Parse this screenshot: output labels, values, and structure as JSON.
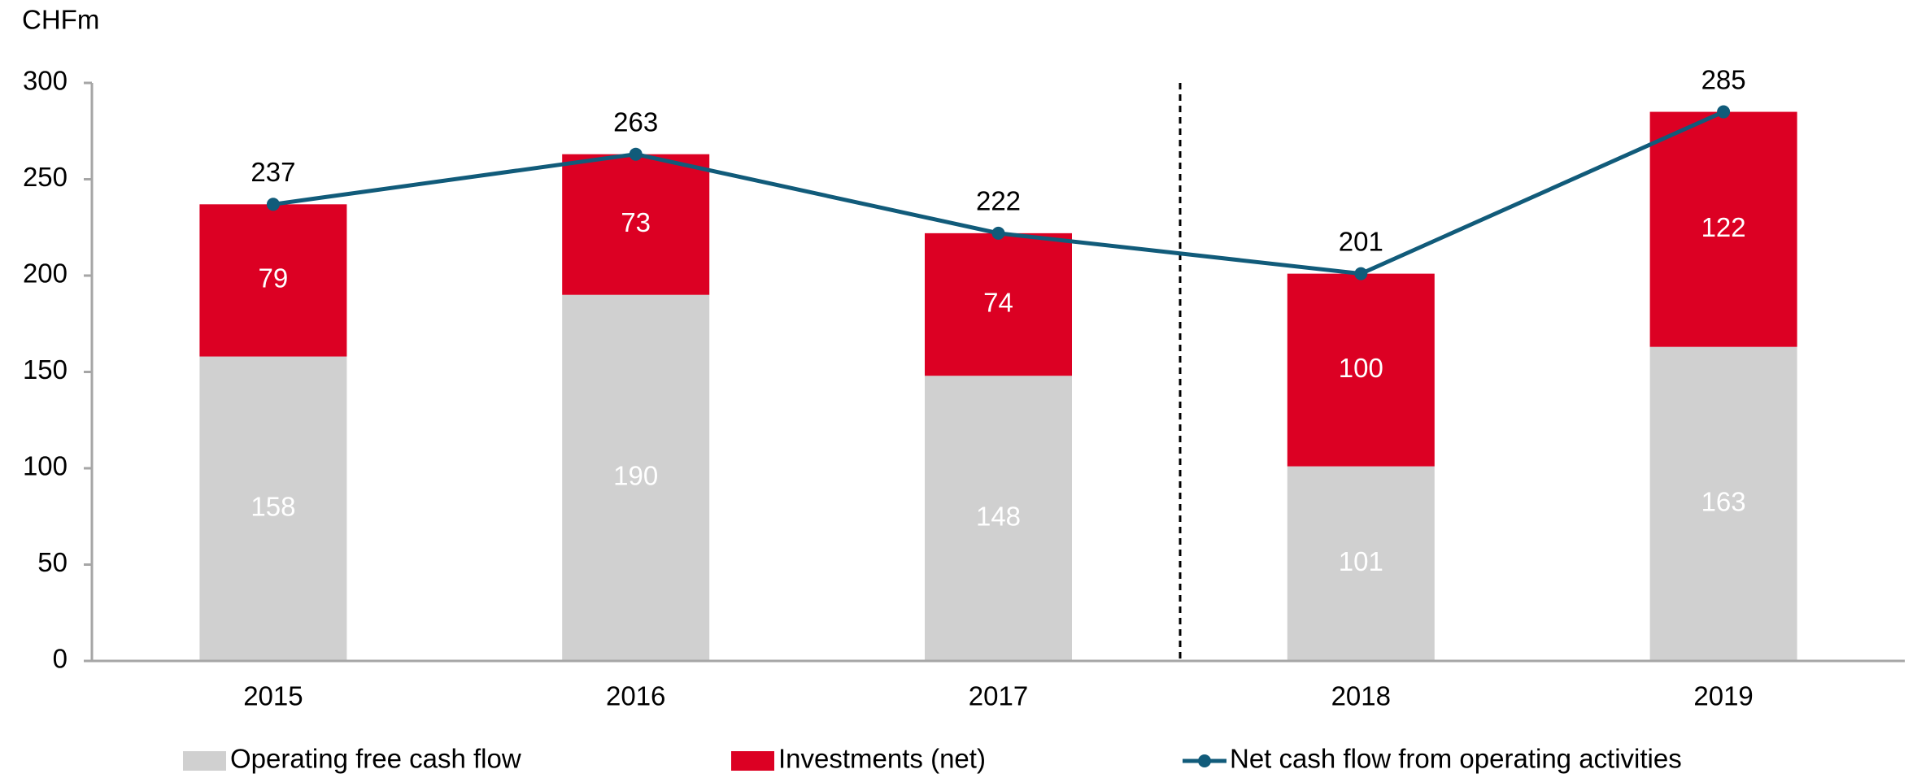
{
  "chart_data": {
    "type": "bar",
    "stacked": true,
    "y_label": "CHFm",
    "categories": [
      "2015",
      "2016",
      "2017",
      "2018",
      "2019"
    ],
    "series": [
      {
        "name": "Operating free cash flow",
        "type": "bar",
        "color": "#d0d0d0",
        "label_color": "#ffffff",
        "values": [
          158,
          190,
          148,
          101,
          163
        ]
      },
      {
        "name": "Investments (net)",
        "type": "bar",
        "color": "#dc0023",
        "label_color": "#ffffff",
        "values": [
          79,
          73,
          74,
          100,
          122
        ]
      },
      {
        "name": "Net cash flow from operating activities",
        "type": "line",
        "color": "#115b7a",
        "label_color": "#000000",
        "values": [
          237,
          263,
          222,
          201,
          285
        ]
      }
    ],
    "ylim": [
      0,
      300
    ],
    "yticks": [
      0,
      50,
      100,
      150,
      200,
      250,
      300
    ],
    "grid": false,
    "legend": "bottom"
  }
}
